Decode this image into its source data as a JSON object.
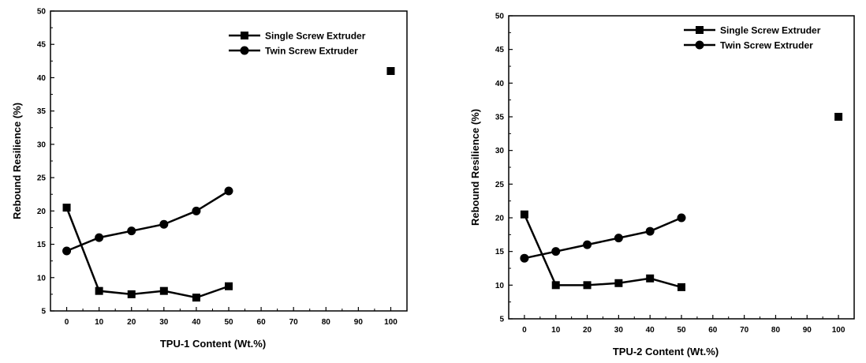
{
  "chart_data": [
    {
      "type": "line",
      "title": "",
      "xlabel": "TPU-1 Content (Wt.%)",
      "ylabel": "Rebound Resilience (%)",
      "xlim": [
        -5,
        105
      ],
      "ylim": [
        5,
        50
      ],
      "xticks": [
        0,
        10,
        20,
        30,
        40,
        50,
        60,
        70,
        80,
        90,
        100
      ],
      "yticks": [
        5,
        10,
        15,
        20,
        25,
        30,
        35,
        40,
        45,
        50
      ],
      "grid": false,
      "legend_position": "top-right",
      "series": [
        {
          "name": "Single Screw Extruder",
          "marker": "square",
          "x": [
            0,
            10,
            20,
            30,
            40,
            50
          ],
          "y": [
            20.5,
            8.0,
            7.5,
            8.0,
            7.0,
            8.7
          ]
        },
        {
          "name": "Twin Screw Extruder",
          "marker": "circle",
          "x": [
            0,
            10,
            20,
            30,
            40,
            50
          ],
          "y": [
            14.0,
            16.0,
            17.0,
            18.0,
            20.0,
            23.0
          ]
        }
      ],
      "extra_points": [
        {
          "marker": "square",
          "x": 100,
          "y": 41.0
        }
      ]
    },
    {
      "type": "line",
      "title": "",
      "xlabel": "TPU-2 Content (Wt.%)",
      "ylabel": "Rebound Resilience (%)",
      "xlim": [
        -5,
        105
      ],
      "ylim": [
        5,
        50
      ],
      "xticks": [
        0,
        10,
        20,
        30,
        40,
        50,
        60,
        70,
        80,
        90,
        100
      ],
      "yticks": [
        5,
        10,
        15,
        20,
        25,
        30,
        35,
        40,
        45,
        50
      ],
      "grid": false,
      "legend_position": "top-right",
      "series": [
        {
          "name": "Single Screw Extruder",
          "marker": "square",
          "x": [
            0,
            10,
            20,
            30,
            40,
            50
          ],
          "y": [
            20.5,
            10.0,
            10.0,
            10.3,
            11.0,
            9.7
          ]
        },
        {
          "name": "Twin Screw Extruder",
          "marker": "circle",
          "x": [
            0,
            10,
            20,
            30,
            40,
            50
          ],
          "y": [
            14.0,
            15.0,
            16.0,
            17.0,
            18.0,
            20.0
          ]
        }
      ],
      "extra_points": [
        {
          "marker": "square",
          "x": 100,
          "y": 35.0
        }
      ]
    }
  ]
}
